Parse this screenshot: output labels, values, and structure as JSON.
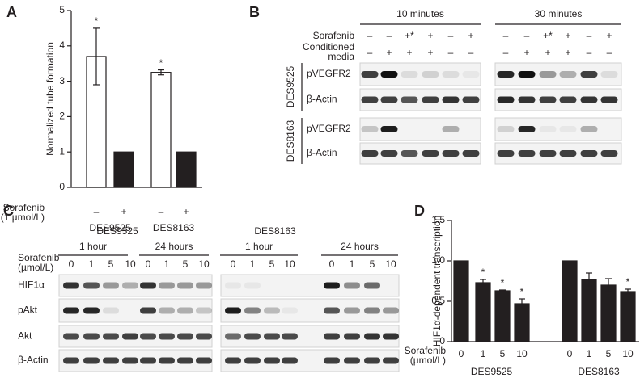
{
  "chart_data": [
    {
      "panel": "A",
      "type": "bar",
      "ylabel": "Normalized tube formation",
      "ylim": [
        0,
        5
      ],
      "yticks": [
        0,
        1,
        2,
        3,
        4,
        5
      ],
      "treatment_label": [
        "Sorafenib",
        "(1 µmol/L)"
      ],
      "colors": [
        "#ffffff",
        "#231f20"
      ],
      "groups": [
        {
          "name": "DES9525",
          "categories": [
            "–",
            "+"
          ],
          "values": [
            3.7,
            1
          ],
          "errors": [
            0.8,
            null
          ],
          "labels": [
            "*",
            null
          ]
        },
        {
          "name": "DES8163",
          "categories": [
            "–",
            "+"
          ],
          "values": [
            3.25,
            1
          ],
          "errors": [
            0.07,
            null
          ],
          "labels": [
            "*",
            null
          ]
        }
      ]
    },
    {
      "panel": "D",
      "type": "bar",
      "ylabel": "HIF1α-dependent transcription",
      "ylim": [
        0,
        1.5
      ],
      "yticks": [
        0,
        0.5,
        {
          "value": 1,
          "label": "1.0"
        },
        1.5
      ],
      "treatment_label": [
        "Sorafenib",
        "(µmol/L)"
      ],
      "color": "#231f20",
      "groups": [
        {
          "name": "DES9525",
          "categories": [
            "0",
            "1",
            "5",
            "10"
          ],
          "values": [
            1,
            0.73,
            0.63,
            0.47
          ],
          "errors": [
            null,
            0.04,
            0.01,
            0.06
          ],
          "labels": [
            null,
            "*",
            "*",
            "*"
          ]
        },
        {
          "name": "DES8163",
          "categories": [
            "0",
            "1",
            "5",
            "10"
          ],
          "values": [
            1,
            0.77,
            0.7,
            0.62
          ],
          "errors": [
            null,
            0.08,
            0.08,
            0.03
          ],
          "labels": [
            null,
            null,
            null,
            "*"
          ]
        }
      ]
    }
  ],
  "blots": [
    {
      "panel": "B",
      "time_points": [
        "10 minutes",
        "30 minutes"
      ],
      "treatments": [
        {
          "label": [
            "Sorafenib"
          ],
          "values": [
            [
              "–",
              "–",
              "+*",
              "+",
              "–",
              "+"
            ],
            [
              "–",
              "–",
              "+*",
              "+",
              "–",
              "+"
            ]
          ]
        },
        {
          "label": [
            "Conditioned",
            "media"
          ],
          "values": [
            [
              "–",
              "+",
              "+",
              "+",
              "–",
              "–"
            ],
            [
              "–",
              "+",
              "+",
              "+",
              "–",
              "–"
            ]
          ]
        }
      ],
      "cell_lines": [
        {
          "name": "DES9525",
          "rows": [
            {
              "label": "pVEGFR2",
              "intensity": [
                [
                  0.8,
                  1,
                  0.1,
                  0.15,
                  0.1,
                  0.05
                ],
                [
                  0.9,
                  1,
                  0.4,
                  0.3,
                  0.8,
                  0.1
                ]
              ]
            },
            {
              "label": "β-Actin",
              "intensity": [
                [
                  0.8,
                  0.8,
                  0.7,
                  0.8,
                  0.85,
                  0.8
                ],
                [
                  0.9,
                  0.85,
                  0.8,
                  0.8,
                  0.85,
                  0.85
                ]
              ]
            }
          ]
        },
        {
          "name": "DES8163",
          "rows": [
            {
              "label": "pVEGFR2",
              "intensity": [
                [
                  0.2,
                  0.95,
                  0,
                  0,
                  0.3,
                  0
                ],
                [
                  0.15,
                  0.9,
                  0.05,
                  0.05,
                  0.3,
                  0
                ]
              ]
            },
            {
              "label": "β-Actin",
              "intensity": [
                [
                  0.8,
                  0.8,
                  0.7,
                  0.8,
                  0.8,
                  0.8
                ],
                [
                  0.8,
                  0.8,
                  0.8,
                  0.8,
                  0.8,
                  0.8
                ]
              ]
            }
          ]
        }
      ]
    },
    {
      "panel": "C",
      "treatment_label": [
        "Sorafenib",
        "(µmol/L)"
      ],
      "row_labels": [
        "HIF1α",
        "pAkt",
        "Akt",
        "β-Actin"
      ],
      "cell_lines": [
        {
          "name": "DES9525",
          "time_points": [
            {
              "label": "1 hour",
              "doses": [
                "0",
                "1",
                "5",
                "10"
              ]
            },
            {
              "label": "24 hours",
              "doses": [
                "0",
                "1",
                "5",
                "10"
              ]
            }
          ],
          "intensity": [
            [
              0.85,
              0.7,
              0.4,
              0.3,
              0.85,
              0.4,
              0.4,
              0.4
            ],
            [
              0.9,
              0.9,
              0.1,
              0,
              0.8,
              0.3,
              0.3,
              0.2
            ],
            [
              0.75,
              0.75,
              0.75,
              0.8,
              0.75,
              0.75,
              0.75,
              0.75
            ],
            [
              0.8,
              0.8,
              0.8,
              0.8,
              0.8,
              0.8,
              0.8,
              0.8
            ]
          ]
        },
        {
          "name": "DES8163",
          "time_points": [
            {
              "label": "1 hour",
              "doses": [
                "0",
                "1",
                "5",
                "10"
              ]
            },
            {
              "label": "24 hours",
              "doses": [
                "0",
                "1",
                "5",
                "10"
              ]
            }
          ],
          "intensity": [
            [
              0.05,
              0.05,
              0,
              0,
              0.95,
              0.45,
              0.6,
              0
            ],
            [
              0.95,
              0.5,
              0.25,
              0.05,
              0.7,
              0.4,
              0.5,
              0.4
            ],
            [
              0.6,
              0.75,
              0.75,
              0.75,
              0.8,
              0.8,
              0.85,
              0.85
            ],
            [
              0.8,
              0.8,
              0.8,
              0.8,
              0.8,
              0.8,
              0.8,
              0.8
            ]
          ]
        }
      ]
    }
  ]
}
